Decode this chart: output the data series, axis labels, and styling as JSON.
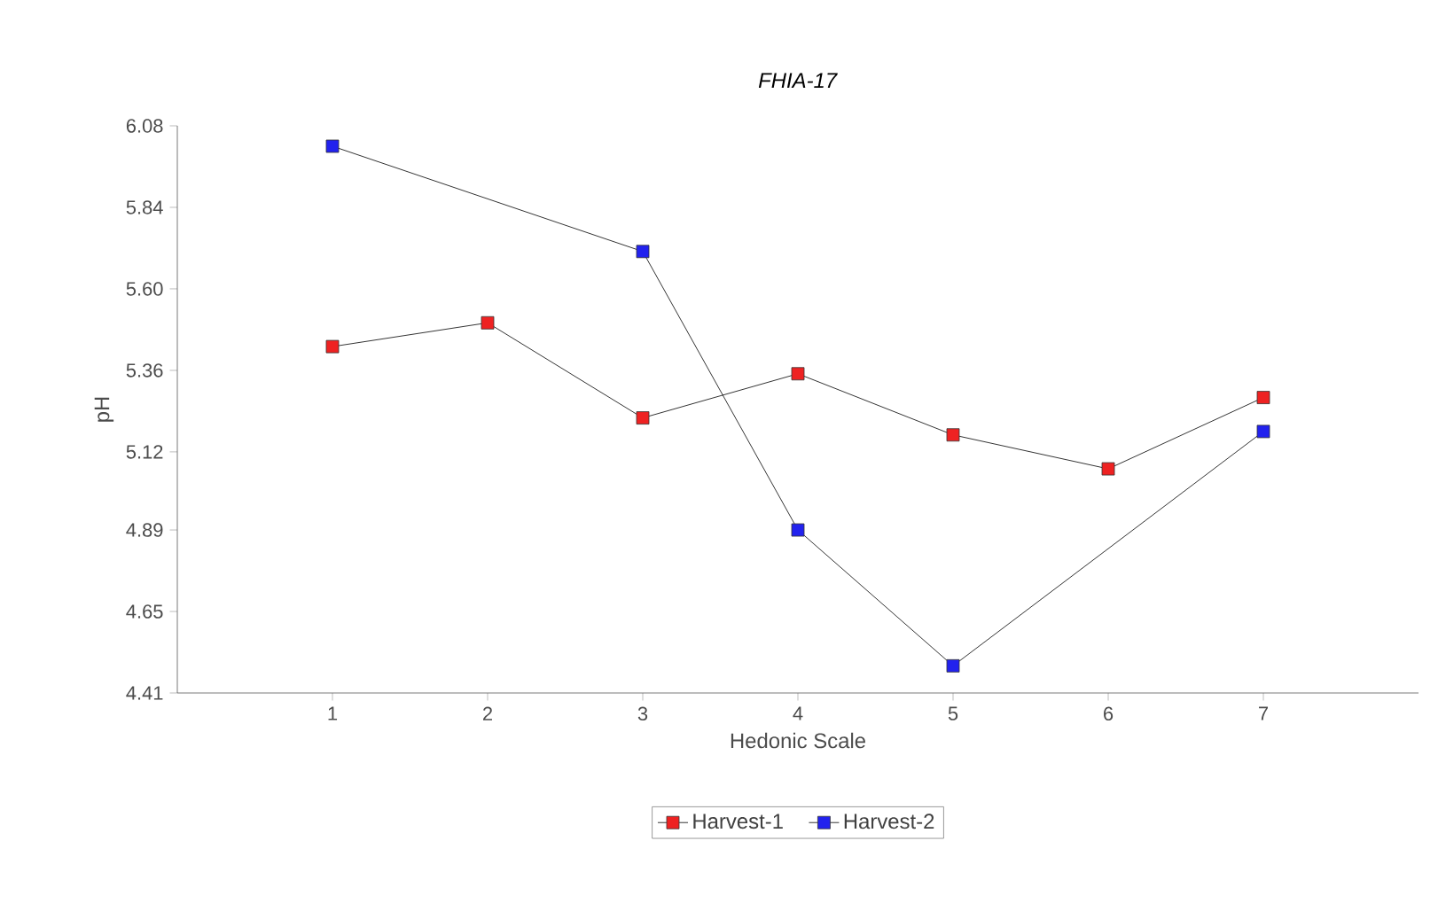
{
  "chart_data": {
    "type": "line",
    "title": "*FHIA-17*",
    "xlabel": "Hedonic Scale",
    "ylabel": "pH",
    "xlim": [
      0,
      8
    ],
    "xticks": [
      1,
      2,
      3,
      4,
      5,
      6,
      7
    ],
    "ylim": [
      4.41,
      6.08
    ],
    "yticks": [
      4.41,
      4.65,
      4.89,
      5.12,
      5.36,
      {
        "value": 5.6,
        "label": "5.60"
      },
      5.84,
      6.08
    ],
    "marker": "square",
    "legend": "bottom",
    "grid": false,
    "series": [
      {
        "name": "Harvest-1",
        "color": "#ee2222",
        "x": [
          1,
          2,
          3,
          4,
          5,
          6,
          7
        ],
        "values": [
          5.43,
          5.5,
          5.22,
          5.35,
          5.17,
          5.07,
          5.28
        ]
      },
      {
        "name": "Harvest-2",
        "color": "#2222ee",
        "x": [
          1,
          3,
          4,
          5,
          7
        ],
        "values": [
          6.02,
          5.71,
          4.89,
          4.49,
          5.18
        ]
      }
    ]
  }
}
